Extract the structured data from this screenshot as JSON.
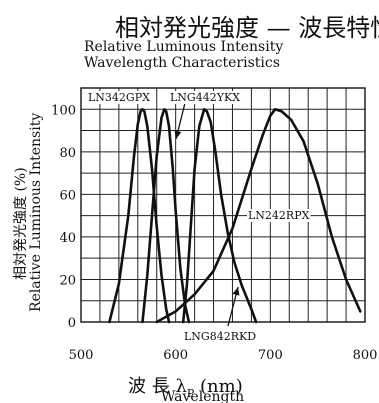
{
  "header": {
    "title_jp": "相対発光強度 — 波長特性",
    "title_en_line1": "Relative Luminous Intensity",
    "title_en_line2": "Wavelength Characteristics"
  },
  "axes": {
    "ylabel_jp": "相対発光強度 (%)",
    "ylabel_en": "Relative Luminous Intensity",
    "xlabel_jp": "波 長",
    "xlabel_symbol": "λ",
    "xlabel_sub": "P",
    "xlabel_unit": "(nm)",
    "xlabel_en": "Wavelength"
  },
  "chart_data": {
    "type": "line",
    "title": "相対発光強度 — 波長特性",
    "xlabel": "Wavelength",
    "ylabel": "Relative Luminous Intensity",
    "xlim": [
      500,
      800
    ],
    "ylim": [
      0,
      110
    ],
    "x_ticks": [
      500,
      600,
      700,
      800
    ],
    "y_ticks": [
      0,
      20,
      40,
      60,
      80,
      100
    ],
    "grid": true,
    "series": [
      {
        "name": "LN342GPX",
        "x": [
          530,
          540,
          550,
          556,
          560,
          563,
          565,
          567,
          570,
          575,
          580,
          585,
          590,
          593
        ],
        "y": [
          0,
          18,
          50,
          78,
          93,
          99,
          100,
          99,
          92,
          72,
          45,
          22,
          6,
          0
        ]
      },
      {
        "name": "LNG442YKX",
        "x": [
          565,
          570,
          575,
          580,
          585,
          588,
          590,
          593,
          597,
          600,
          605,
          610,
          614
        ],
        "y": [
          0,
          22,
          50,
          78,
          96,
          100,
          99,
          92,
          72,
          52,
          25,
          8,
          0
        ]
      },
      {
        "name": "LNG842RKD",
        "x": [
          608,
          612,
          616,
          620,
          625,
          630,
          633,
          637,
          642,
          648,
          655,
          662,
          670,
          680,
          685
        ],
        "y": [
          0,
          18,
          45,
          72,
          92,
          100,
          99,
          94,
          80,
          60,
          42,
          28,
          17,
          6,
          0
        ]
      },
      {
        "name": "LN242RPX",
        "x": [
          580,
          600,
          620,
          640,
          660,
          680,
          692,
          700,
          705,
          712,
          722,
          735,
          750,
          765,
          780,
          795
        ],
        "y": [
          0,
          5,
          13,
          24,
          44,
          72,
          88,
          97,
          100,
          99,
          95,
          85,
          65,
          40,
          20,
          5
        ]
      }
    ]
  }
}
